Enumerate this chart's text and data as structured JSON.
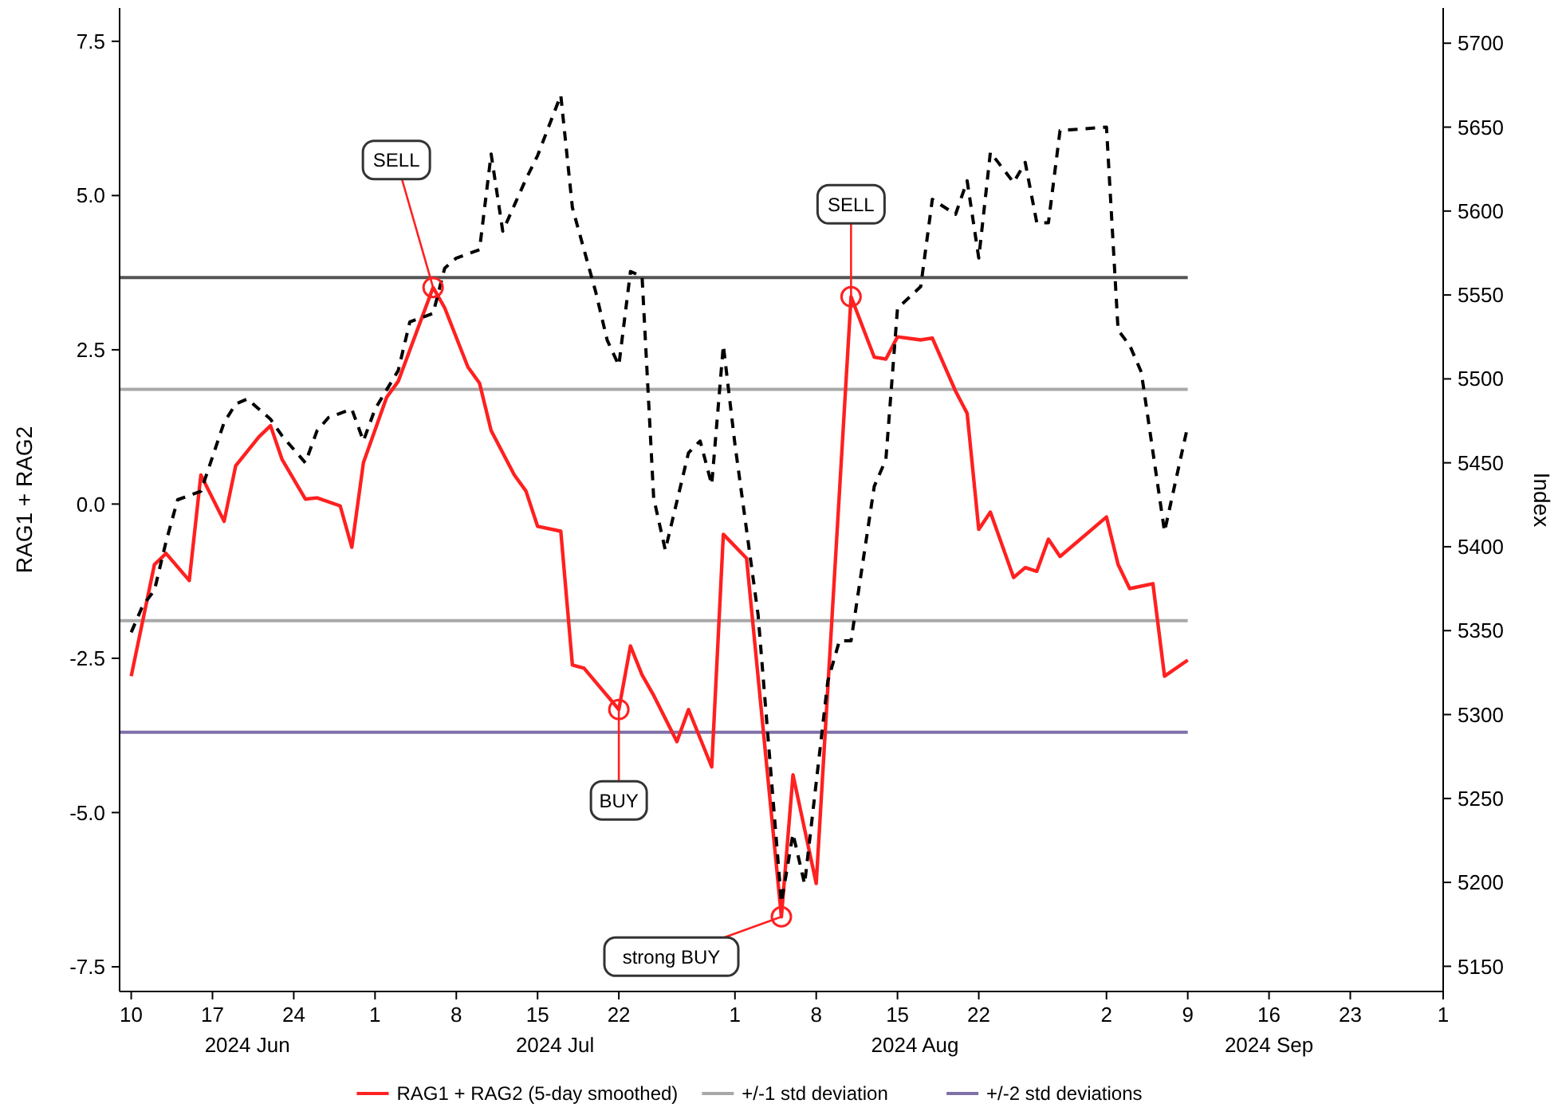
{
  "chart_data": {
    "type": "line",
    "ylabel": "RAG1 + RAG2",
    "y2label": "Index",
    "xlim": [
      "2024-06-09",
      "2024-10-01"
    ],
    "xticks": [
      {
        "value": "2024-06-10",
        "label": "10"
      },
      {
        "value": "2024-06-17",
        "label": "17"
      },
      {
        "value": "2024-06-24",
        "label": "24"
      },
      {
        "value": "2024-07-01",
        "label": "1"
      },
      {
        "value": "2024-07-08",
        "label": "8"
      },
      {
        "value": "2024-07-15",
        "label": "15"
      },
      {
        "value": "2024-07-22",
        "label": "22"
      },
      {
        "value": "2024-08-01",
        "label": "1"
      },
      {
        "value": "2024-08-08",
        "label": "8"
      },
      {
        "value": "2024-08-15",
        "label": "15"
      },
      {
        "value": "2024-08-22",
        "label": "22"
      },
      {
        "value": "2024-09-02",
        "label": "2"
      },
      {
        "value": "2024-09-09",
        "label": "9"
      },
      {
        "value": "2024-09-16",
        "label": "16"
      },
      {
        "value": "2024-09-23",
        "label": "23"
      },
      {
        "value": "2024-10-01",
        "label": "1"
      }
    ],
    "ylim": [
      -7.9,
      8.04
    ],
    "yticks": [
      {
        "value": -7.5,
        "label": "-7.5"
      },
      {
        "value": -5,
        "label": "-5.0"
      },
      {
        "value": -2.5,
        "label": "-2.5"
      },
      {
        "value": 0,
        "label": "0.0"
      },
      {
        "value": 2.5,
        "label": "2.5"
      },
      {
        "value": 5,
        "label": "5.0"
      },
      {
        "value": 7.5,
        "label": "7.5"
      }
    ],
    "y2lim": [
      5135,
      5721
    ],
    "y2ticks": [
      5150,
      5200,
      5250,
      5300,
      5350,
      5400,
      5450,
      5500,
      5550,
      5600,
      5650,
      5700
    ],
    "legend": "bottom",
    "grid": false,
    "series": [
      {
        "name": "RAG1 + RAG2 (5-day smoothed)",
        "color": "#ff2020",
        "line_style": "solid",
        "x": [
          "2024-06-10",
          "2024-06-12",
          "2024-06-13",
          "2024-06-15",
          "2024-06-16",
          "2024-06-18",
          "2024-06-19",
          "2024-06-21",
          "2024-06-22",
          "2024-06-23",
          "2024-06-25",
          "2024-06-26",
          "2024-06-28",
          "2024-06-29",
          "2024-06-30",
          "2024-07-02",
          "2024-07-03",
          "2024-07-06",
          "2024-07-07",
          "2024-07-09",
          "2024-07-10",
          "2024-07-11",
          "2024-07-13",
          "2024-07-14",
          "2024-07-15",
          "2024-07-17",
          "2024-07-18",
          "2024-07-19",
          "2024-07-22",
          "2024-07-23",
          "2024-07-24",
          "2024-07-25",
          "2024-07-27",
          "2024-07-28",
          "2024-07-30",
          "2024-07-31",
          "2024-08-02",
          "2024-08-05",
          "2024-08-06",
          "2024-08-08",
          "2024-08-11",
          "2024-08-13",
          "2024-08-14",
          "2024-08-15",
          "2024-08-17",
          "2024-08-18",
          "2024-08-20",
          "2024-08-21",
          "2024-08-22",
          "2024-08-23",
          "2024-08-25",
          "2024-08-26",
          "2024-08-27",
          "2024-08-28",
          "2024-08-29",
          "2024-09-02",
          "2024-09-03",
          "2024-09-04",
          "2024-09-06",
          "2024-09-07",
          "2024-09-09"
        ],
        "values": [
          -2.79,
          -0.98,
          -0.8,
          -1.24,
          0.47,
          -0.28,
          0.62,
          1.09,
          1.27,
          0.72,
          0.08,
          0.1,
          -0.03,
          -0.7,
          0.67,
          1.73,
          1.99,
          3.51,
          3.18,
          2.22,
          1.96,
          1.19,
          0.47,
          0.21,
          -0.36,
          -0.44,
          -2.61,
          -2.66,
          -3.33,
          -2.3,
          -2.77,
          -3.1,
          -3.85,
          -3.33,
          -4.26,
          -0.49,
          -0.88,
          -6.69,
          -4.39,
          -6.15,
          3.36,
          2.38,
          2.35,
          2.71,
          2.66,
          2.69,
          1.83,
          1.47,
          -0.41,
          -0.13,
          -1.19,
          -1.03,
          -1.09,
          -0.57,
          -0.85,
          -0.21,
          -0.98,
          -1.37,
          -1.29,
          -2.79,
          -2.53
        ]
      },
      {
        "color": "#000000",
        "axis": "y2",
        "line_style": "dashed",
        "x": [
          "2024-06-10",
          "2024-06-11",
          "2024-06-12",
          "2024-06-13",
          "2024-06-14",
          "2024-06-16",
          "2024-06-18",
          "2024-06-19",
          "2024-06-20",
          "2024-06-22",
          "2024-06-23",
          "2024-06-25",
          "2024-06-26",
          "2024-06-27",
          "2024-06-29",
          "2024-06-30",
          "2024-07-01",
          "2024-07-03",
          "2024-07-04",
          "2024-07-06",
          "2024-07-07",
          "2024-07-08",
          "2024-07-10",
          "2024-07-11",
          "2024-07-12",
          "2024-07-14",
          "2024-07-15",
          "2024-07-17",
          "2024-07-18",
          "2024-07-20",
          "2024-07-21",
          "2024-07-22",
          "2024-07-23",
          "2024-07-24",
          "2024-07-25",
          "2024-07-26",
          "2024-07-28",
          "2024-07-29",
          "2024-07-30",
          "2024-07-31",
          "2024-08-01",
          "2024-08-03",
          "2024-08-05",
          "2024-08-06",
          "2024-08-07",
          "2024-08-09",
          "2024-08-10",
          "2024-08-11",
          "2024-08-13",
          "2024-08-14",
          "2024-08-15",
          "2024-08-17",
          "2024-08-18",
          "2024-08-20",
          "2024-08-21",
          "2024-08-22",
          "2024-08-23",
          "2024-08-25",
          "2024-08-26",
          "2024-08-27",
          "2024-08-28",
          "2024-08-29",
          "2024-09-02",
          "2024-09-03",
          "2024-09-04",
          "2024-09-05",
          "2024-09-07",
          "2024-09-09"
        ],
        "values": [
          5349,
          5365,
          5374,
          5403,
          5428,
          5433,
          5474,
          5485,
          5488,
          5476,
          5466,
          5450,
          5469,
          5477,
          5482,
          5463,
          5482,
          5505,
          5534,
          5539,
          5566,
          5572,
          5577,
          5634,
          5588,
          5619,
          5633,
          5669,
          5602,
          5552,
          5523,
          5508,
          5564,
          5561,
          5429,
          5398,
          5456,
          5463,
          5437,
          5520,
          5461,
          5359,
          5188,
          5229,
          5199,
          5320,
          5344,
          5344,
          5436,
          5452,
          5542,
          5555,
          5607,
          5598,
          5618,
          5572,
          5635,
          5617,
          5629,
          5593,
          5593,
          5648,
          5650,
          5529,
          5520,
          5504,
          5409,
          5472
        ]
      }
    ],
    "ref_lines": [
      {
        "axis": "y",
        "value": 3.67,
        "color": "#555555"
      },
      {
        "axis": "y",
        "value": 1.86,
        "color": "#a8a8a8",
        "label": "+/-1 std deviation"
      },
      {
        "axis": "y",
        "value": -1.89,
        "color": "#a8a8a8"
      },
      {
        "axis": "y",
        "value": -3.7,
        "color": "#8070a8",
        "label": "+/-2 std deviations"
      }
    ],
    "annotations": [
      {
        "text": "SELL",
        "x": "2024-07-06",
        "y": 3.51
      },
      {
        "text": "BUY",
        "x": "2024-07-22",
        "y": -3.33
      },
      {
        "text": "strong BUY",
        "x": "2024-08-05",
        "y": -6.69
      },
      {
        "text": "SELL",
        "x": "2024-08-11",
        "y": 3.36
      },
      "2024 Jun",
      "2024 Jul",
      "2024 Aug",
      "2024 Sep"
    ]
  }
}
